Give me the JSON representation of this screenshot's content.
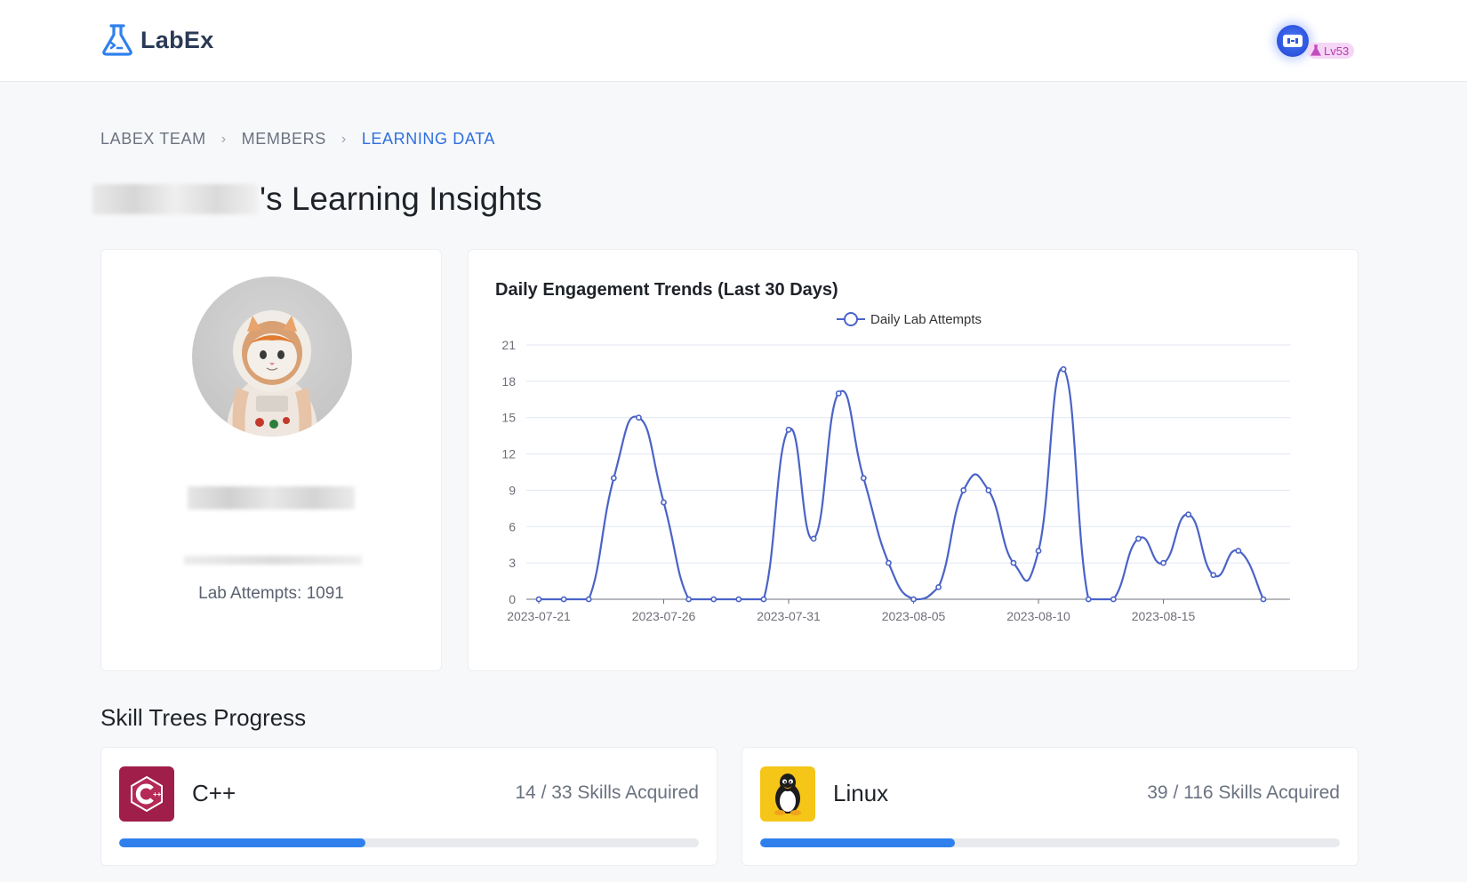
{
  "header": {
    "brand": "LabEx",
    "user_level": "Lv53"
  },
  "breadcrumb": [
    {
      "label": "LABEX TEAM"
    },
    {
      "label": "MEMBERS"
    },
    {
      "label": "LEARNING DATA"
    }
  ],
  "page": {
    "title_suffix": "'s Learning Insights"
  },
  "profile": {
    "lab_attempts": "Lab Attempts: 1091"
  },
  "chart": {
    "title": "Daily Engagement Trends (Last 30 Days)",
    "legend": "Daily Lab Attempts",
    "line_color": "#4a63c7"
  },
  "chart_data": {
    "type": "line",
    "title": "Daily Engagement Trends (Last 30 Days)",
    "x_ticks": [
      "2023-07-21",
      "2023-07-26",
      "2023-07-31",
      "2023-08-05",
      "2023-08-10",
      "2023-08-15"
    ],
    "y_ticks": [
      "0",
      "3",
      "6",
      "9",
      "12",
      "15",
      "18",
      "21"
    ],
    "ylim": [
      0,
      21
    ],
    "x": [
      "2023-07-21",
      "2023-07-22",
      "2023-07-23",
      "2023-07-24",
      "2023-07-25",
      "2023-07-26",
      "2023-07-27",
      "2023-07-28",
      "2023-07-29",
      "2023-07-30",
      "2023-07-31",
      "2023-08-01",
      "2023-08-02",
      "2023-08-03",
      "2023-08-04",
      "2023-08-05",
      "2023-08-06",
      "2023-08-07",
      "2023-08-08",
      "2023-08-09",
      "2023-08-10",
      "2023-08-11",
      "2023-08-12",
      "2023-08-13",
      "2023-08-14",
      "2023-08-15",
      "2023-08-16",
      "2023-08-17",
      "2023-08-18",
      "2023-08-19"
    ],
    "series": [
      {
        "name": "Daily Lab Attempts",
        "values": [
          0,
          0,
          0,
          10,
          15,
          8,
          0,
          0,
          0,
          0,
          14,
          5,
          17,
          10,
          3,
          0,
          1,
          9,
          9,
          3,
          4,
          19,
          0,
          0,
          5,
          3,
          7,
          2,
          4,
          0
        ]
      }
    ],
    "grid": true,
    "legend_position": "top-center"
  },
  "skills": {
    "section_title": "Skill Trees Progress",
    "items": [
      {
        "name": "C++",
        "count": "14 / 33 Skills Acquired",
        "progress": 0.4242,
        "color": "#a01e4a"
      },
      {
        "name": "Linux",
        "count": "39 / 116 Skills Acquired",
        "progress": 0.3362,
        "color": "#f5c518"
      }
    ]
  }
}
